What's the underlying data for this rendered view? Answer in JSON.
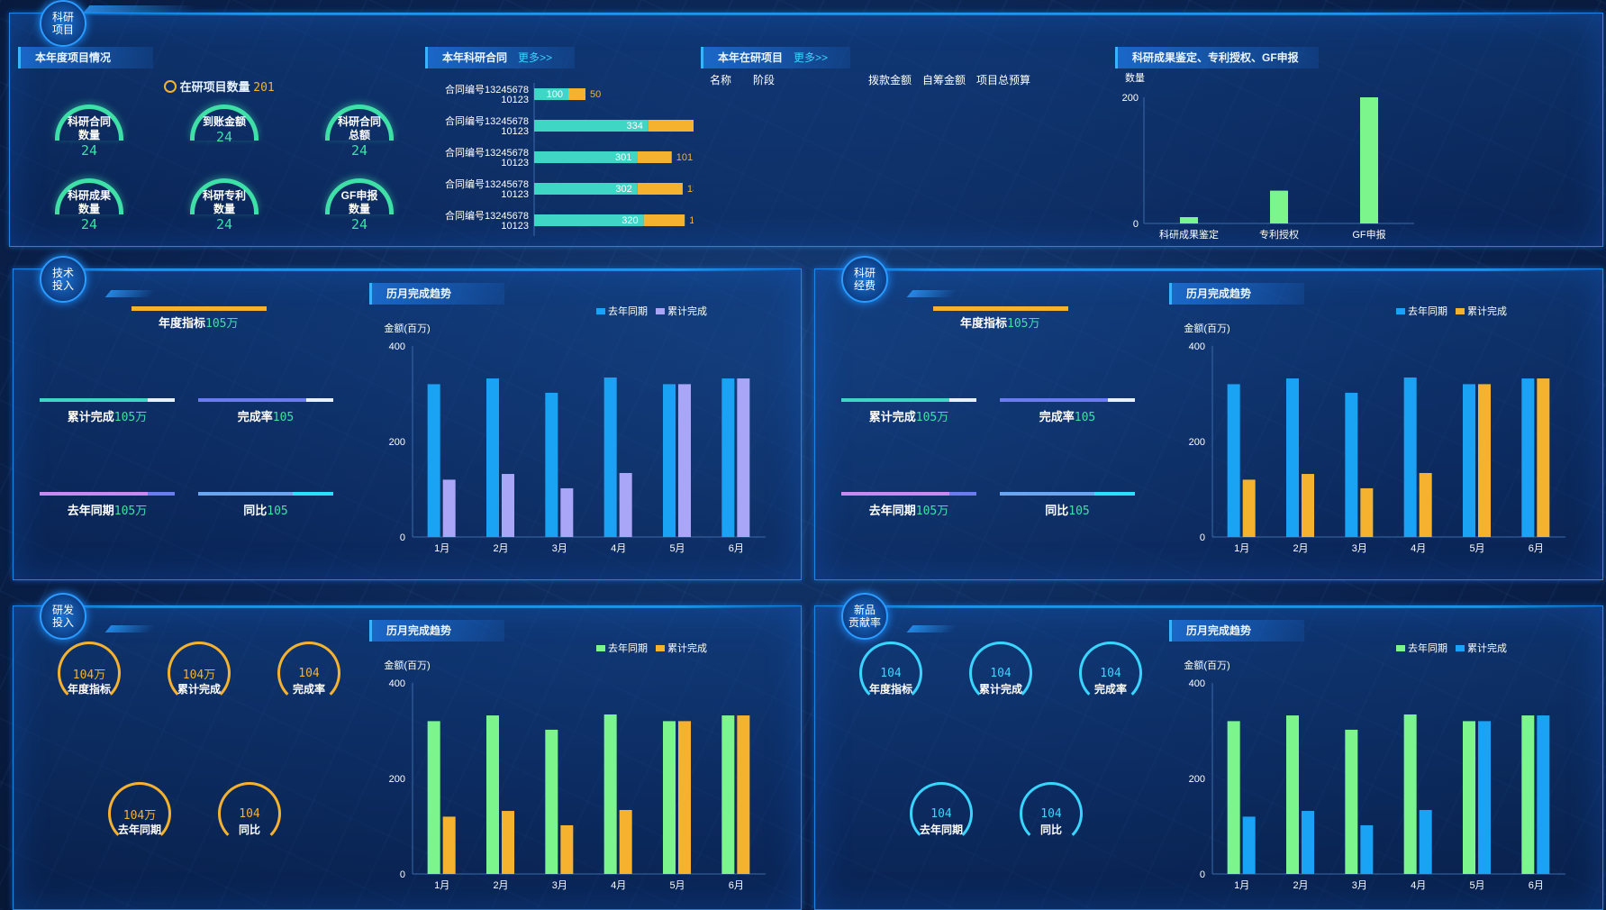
{
  "colors": {
    "blue": "#1aa3f5",
    "purple": "#a9a6f7",
    "orange": "#f5b22e",
    "green": "#7cf58c",
    "teal": "#3fd6c6",
    "gauge_green": "#3fe0a8",
    "cyan": "#39d5ff"
  },
  "research": {
    "badge": "科研\n项目",
    "overview": {
      "title": "本年度项目情况",
      "count_label": "在研项目数量",
      "count_value": "201",
      "gauges": [
        {
          "label": "科研合同\n数量",
          "value": "24"
        },
        {
          "label": "到账金额",
          "value": "24"
        },
        {
          "label": "科研合同\n总额",
          "value": "24"
        },
        {
          "label": "科研成果\n数量",
          "value": "24"
        },
        {
          "label": "科研专利\n数量",
          "value": "24"
        },
        {
          "label": "GF申报\n数量",
          "value": "24"
        }
      ]
    },
    "contracts": {
      "title": "本年科研合同",
      "more": "更多>>",
      "chart_data": {
        "type": "bar",
        "orientation": "horizontal",
        "stacked": true,
        "categories": [
          "合同编号13245678 10123",
          "合同编号13245678 10123",
          "合同编号13245678 10123",
          "合同编号13245678 10123",
          "合同编号13245678 10123"
        ],
        "series": [
          {
            "values": [
              100,
              334,
              301,
              302,
              320
            ]
          },
          {
            "values": [
              50,
              134,
              101,
              132,
              120
            ]
          }
        ]
      }
    },
    "ongoing": {
      "title": "本年在研项目",
      "more": "更多>>",
      "columns": [
        "名称",
        "阶段",
        "拨款金额",
        "自筹金额",
        "项目总预算"
      ]
    },
    "achievements": {
      "title": "科研成果鉴定、专利授权、GF申报",
      "chart_data": {
        "type": "bar",
        "categories": [
          "科研成果鉴定",
          "专利授权",
          "GF申报"
        ],
        "values": [
          10,
          52,
          200
        ],
        "ylabel": "数量",
        "yticks": [
          0,
          200
        ],
        "ylim": [
          0,
          200
        ]
      }
    }
  },
  "tech": {
    "badge": "技术\n投入",
    "target_label": "年度指标",
    "target_value": "105万",
    "kpis": [
      {
        "label": "累计完成",
        "value": "105万"
      },
      {
        "label": "完成率",
        "value": "105"
      },
      {
        "label": "去年同期",
        "value": "105万"
      },
      {
        "label": "同比",
        "value": "105"
      }
    ],
    "trend_title": "历月完成趋势",
    "chart_data": {
      "type": "bar",
      "categories": [
        "1月",
        "2月",
        "3月",
        "4月",
        "5月",
        "6月"
      ],
      "series": [
        {
          "name": "去年同期",
          "values": [
            320,
            332,
            302,
            334,
            320,
            332
          ]
        },
        {
          "name": "累计完成",
          "values": [
            120,
            132,
            102,
            134,
            320,
            332
          ]
        }
      ],
      "ylabel": "金额(百万)",
      "yticks": [
        0,
        200,
        400
      ],
      "ylim": [
        0,
        400
      ],
      "legend": "top-right"
    }
  },
  "funds": {
    "badge": "科研\n经费",
    "target_label": "年度指标",
    "target_value": "105万",
    "kpis": [
      {
        "label": "累计完成",
        "value": "105万"
      },
      {
        "label": "完成率",
        "value": "105"
      },
      {
        "label": "去年同期",
        "value": "105万"
      },
      {
        "label": "同比",
        "value": "105"
      }
    ],
    "trend_title": "历月完成趋势",
    "chart_data": {
      "type": "bar",
      "categories": [
        "1月",
        "2月",
        "3月",
        "4月",
        "5月",
        "6月"
      ],
      "series": [
        {
          "name": "去年同期",
          "values": [
            320,
            332,
            302,
            334,
            320,
            332
          ]
        },
        {
          "name": "累计完成",
          "values": [
            120,
            132,
            102,
            134,
            320,
            332
          ]
        }
      ],
      "ylabel": "金额(百万)",
      "yticks": [
        0,
        200,
        400
      ],
      "ylim": [
        0,
        400
      ],
      "legend": "top-right"
    }
  },
  "rd": {
    "badge": "研发\n投入",
    "rings": [
      {
        "label": "年度指标",
        "value": "104万"
      },
      {
        "label": "累计完成",
        "value": "104万"
      },
      {
        "label": "完成率",
        "value": "104"
      },
      {
        "label": "去年同期",
        "value": "104万"
      },
      {
        "label": "同比",
        "value": "104"
      }
    ],
    "trend_title": "历月完成趋势",
    "chart_data": {
      "type": "bar",
      "categories": [
        "1月",
        "2月",
        "3月",
        "4月",
        "5月",
        "6月"
      ],
      "series": [
        {
          "name": "去年同期",
          "values": [
            320,
            332,
            302,
            334,
            320,
            332
          ]
        },
        {
          "name": "累计完成",
          "values": [
            120,
            132,
            102,
            134,
            320,
            332
          ]
        }
      ],
      "ylabel": "金额(百万)",
      "yticks": [
        0,
        200,
        400
      ],
      "ylim": [
        0,
        400
      ],
      "legend": "top-right"
    }
  },
  "newprod": {
    "badge": "新品\n贡献率",
    "rings": [
      {
        "label": "年度指标",
        "value": "104"
      },
      {
        "label": "累计完成",
        "value": "104"
      },
      {
        "label": "完成率",
        "value": "104"
      },
      {
        "label": "去年同期",
        "value": "104"
      },
      {
        "label": "同比",
        "value": "104"
      }
    ],
    "trend_title": "历月完成趋势",
    "chart_data": {
      "type": "bar",
      "categories": [
        "1月",
        "2月",
        "3月",
        "4月",
        "5月",
        "6月"
      ],
      "series": [
        {
          "name": "去年同期",
          "values": [
            320,
            332,
            302,
            334,
            320,
            332
          ]
        },
        {
          "name": "累计完成",
          "values": [
            120,
            132,
            102,
            134,
            320,
            332
          ]
        }
      ],
      "ylabel": "金额(百万)",
      "yticks": [
        0,
        200,
        400
      ],
      "ylim": [
        0,
        400
      ],
      "legend": "top-right"
    }
  }
}
